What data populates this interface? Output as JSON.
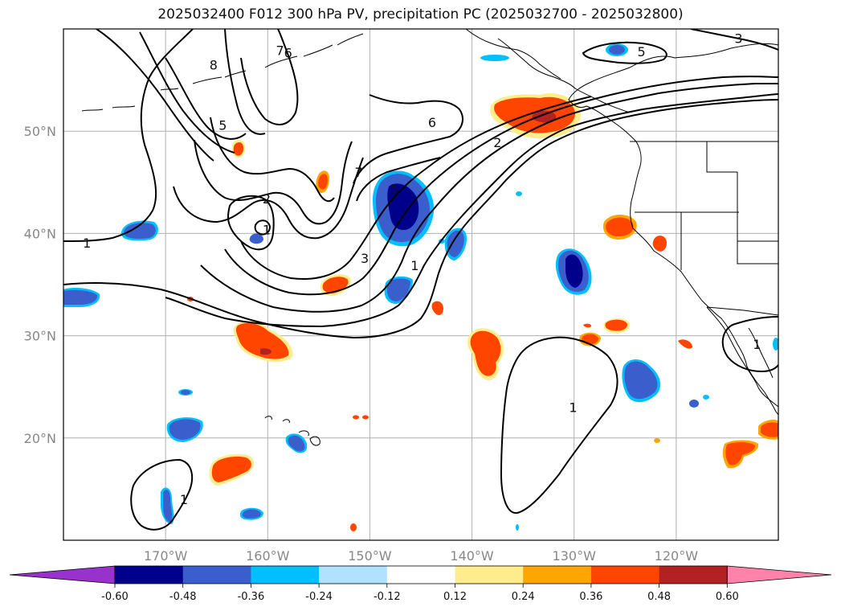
{
  "title": "2025032400 F012 300 hPa PV, precipitation PC (2025032700 - 2025032800)",
  "map": {
    "lon_range": [
      -180,
      -110
    ],
    "lat_range": [
      10,
      60
    ],
    "lat_ticks": [
      {
        "value": 50,
        "label": "50°N"
      },
      {
        "value": 40,
        "label": "40°N"
      },
      {
        "value": 30,
        "label": "30°N"
      },
      {
        "value": 20,
        "label": "20°N"
      }
    ],
    "lon_ticks": [
      {
        "value": -170,
        "label": "170°W"
      },
      {
        "value": -160,
        "label": "160°W"
      },
      {
        "value": -150,
        "label": "150°W"
      },
      {
        "value": -140,
        "label": "140°W"
      },
      {
        "value": -130,
        "label": "130°W"
      },
      {
        "value": -120,
        "label": "120°W"
      }
    ],
    "grid": true
  },
  "pv_contour_labels": [
    {
      "text": "8",
      "lon": -165.3,
      "lat": 56.5
    },
    {
      "text": "7",
      "lon": -158.8,
      "lat": 57.9
    },
    {
      "text": "6",
      "lon": -158.0,
      "lat": 57.7
    },
    {
      "text": "5",
      "lon": -164.4,
      "lat": 50.6
    },
    {
      "text": "2",
      "lon": -160.1,
      "lat": 43.4
    },
    {
      "text": "1",
      "lon": -160.1,
      "lat": 40.4
    },
    {
      "text": "1",
      "lon": -177.7,
      "lat": 39.1
    },
    {
      "text": "7",
      "lon": -151.1,
      "lat": 46.0
    },
    {
      "text": "6",
      "lon": -143.9,
      "lat": 50.9
    },
    {
      "text": "5",
      "lon": -147.6,
      "lat": 44.4
    },
    {
      "text": "3",
      "lon": -150.5,
      "lat": 37.6
    },
    {
      "text": "1",
      "lon": -145.6,
      "lat": 36.9
    },
    {
      "text": "2",
      "lon": -137.5,
      "lat": 48.9
    },
    {
      "text": "5",
      "lon": -123.4,
      "lat": 57.8
    },
    {
      "text": "3",
      "lon": -113.9,
      "lat": 59.1
    },
    {
      "text": "1",
      "lon": -130.1,
      "lat": 23.0
    },
    {
      "text": "1",
      "lon": -168.2,
      "lat": 14.0
    },
    {
      "text": "1",
      "lon": -112.1,
      "lat": 29.2
    }
  ],
  "colorbar": {
    "ticks": [
      "-0.60",
      "-0.48",
      "-0.36",
      "-0.24",
      "-0.12",
      "0.12",
      "0.24",
      "0.36",
      "0.48",
      "0.60"
    ],
    "colors": [
      "#9932cc",
      "#00008b",
      "#3a5fcd",
      "#00bfff",
      "#b0e2ff",
      "#ffffff",
      "#ffec8b",
      "#ffa500",
      "#ff4500",
      "#b22222",
      "#ff82ab"
    ]
  },
  "colors": {
    "neg_strong": "#00008b",
    "neg_mid": "#3a5fcd",
    "neg_weak": "#00bfff",
    "neg_faint": "#b0e2ff",
    "pos_faint": "#ffec8b",
    "pos_weak": "#ffa500",
    "pos_mid": "#ff4500",
    "pos_strong": "#b22222"
  }
}
